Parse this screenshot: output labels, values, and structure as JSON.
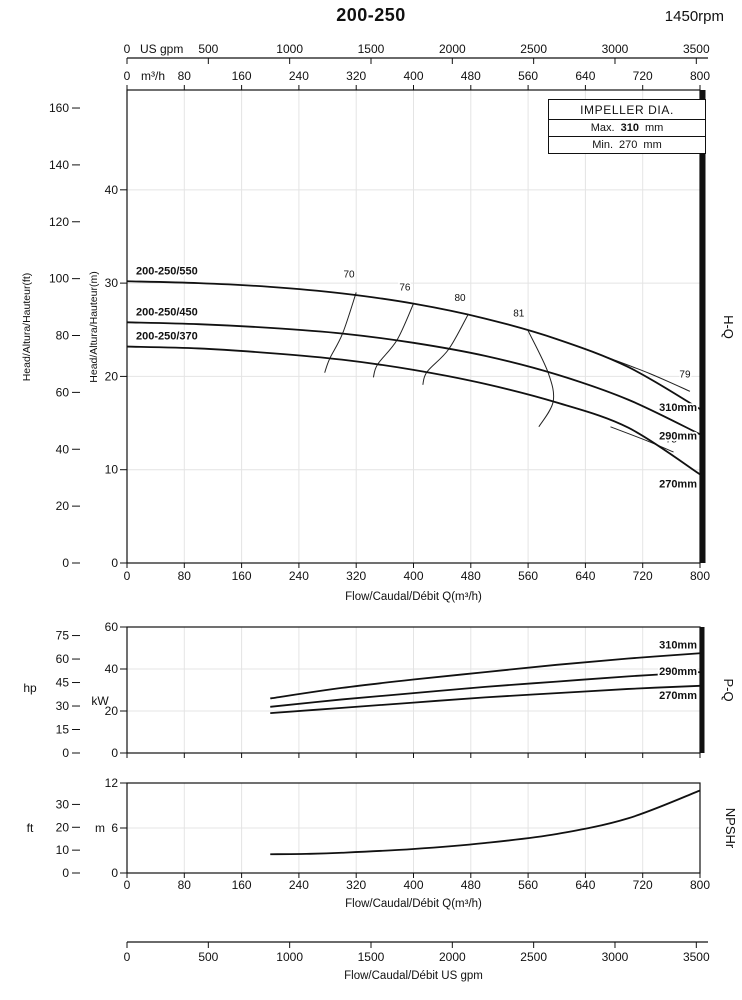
{
  "header": {
    "title": "200-250",
    "rpm": "1450rpm"
  },
  "impeller_box": {
    "title": "IMPELLER DIA.",
    "rows": [
      {
        "label": "Max.",
        "value": "310",
        "unit": "mm"
      },
      {
        "label": "Min.",
        "value": "270",
        "unit": "mm"
      }
    ]
  },
  "right_labels": {
    "hq": "H-Q",
    "pq": "P-Q",
    "npshr": "NPSHr"
  },
  "bottom_axis_gpm": {
    "label": "Flow/Caudal/Débit  US gpm",
    "ticks": [
      0,
      500,
      1000,
      1500,
      2000,
      2500,
      3000,
      3500
    ]
  },
  "chart_data": [
    {
      "type": "line",
      "name": "H-Q",
      "xlabel": "Flow/Caudal/Débit Q(m³/h)",
      "x_unit": "m³/h",
      "x2_unit": "US gpm",
      "ylabel_ft": "Head/Altura/Hauteur(ft)",
      "ylabel_m": "Head/Altura/Hauteur(m)",
      "xlim": [
        0,
        800
      ],
      "ylim_m": [
        0,
        50.7
      ],
      "x_ticks": [
        0,
        80,
        160,
        240,
        320,
        400,
        480,
        560,
        640,
        720,
        800
      ],
      "x2_ticks_gpm": [
        0,
        500,
        1000,
        1500,
        2000,
        2500,
        3000,
        3500
      ],
      "y_ticks_m": [
        0,
        10,
        20,
        30,
        40
      ],
      "y_ticks_ft": [
        0,
        20,
        40,
        60,
        80,
        100,
        120,
        140,
        160
      ],
      "series": [
        {
          "name": "200-250/550",
          "diameter_label": "310mm",
          "x": [
            0,
            100,
            200,
            300,
            400,
            500,
            600,
            700,
            800
          ],
          "y": [
            30.2,
            30.0,
            29.6,
            28.9,
            27.8,
            26.2,
            24.0,
            21.0,
            16.5
          ]
        },
        {
          "name": "200-250/450",
          "diameter_label": "290mm",
          "x": [
            0,
            100,
            200,
            300,
            400,
            500,
            600,
            700,
            800
          ],
          "y": [
            25.8,
            25.6,
            25.2,
            24.6,
            23.6,
            22.2,
            20.2,
            17.5,
            13.8
          ]
        },
        {
          "name": "200-250/370",
          "diameter_label": "270mm",
          "x": [
            0,
            100,
            200,
            300,
            400,
            500,
            600,
            700,
            800
          ],
          "y": [
            23.2,
            23.0,
            22.5,
            21.8,
            20.7,
            19.2,
            17.2,
            14.5,
            9.5
          ]
        }
      ],
      "efficiency_contours": [
        {
          "label": "70",
          "label_at": [
            310,
            30.6
          ],
          "points": [
            [
              320,
              29.0
            ],
            [
              301,
              24.6
            ],
            [
              283,
              21.9
            ],
            [
              276,
              20.4
            ]
          ]
        },
        {
          "label": "76",
          "label_at": [
            388,
            29.2
          ],
          "points": [
            [
              400,
              27.8
            ],
            [
              377,
              23.9
            ],
            [
              350,
              21.3
            ],
            [
              344,
              19.9
            ]
          ]
        },
        {
          "label": "80",
          "label_at": [
            465,
            28.1
          ],
          "points": [
            [
              476,
              26.6
            ],
            [
              449,
              22.9
            ],
            [
              419,
              20.5
            ],
            [
              413,
              19.1
            ]
          ]
        },
        {
          "label": "81",
          "label_at": [
            547,
            26.4
          ],
          "points": [
            [
              560,
              24.9
            ],
            [
              588,
              20.4
            ],
            [
              595,
              17.3
            ],
            [
              575,
              14.6
            ]
          ]
        },
        {
          "label": "79",
          "label_at": [
            779,
            19.9
          ],
          "points": [
            [
              672,
              22.0
            ],
            [
              730,
              20.3
            ],
            [
              786,
              18.4
            ]
          ]
        },
        {
          "label": "75",
          "label_at": [
            760,
            12.9
          ],
          "points": [
            [
              675,
              14.6
            ],
            [
              726,
              13.1
            ],
            [
              763,
              11.9
            ]
          ]
        }
      ]
    },
    {
      "type": "line",
      "name": "P-Q",
      "ylabel_hp": "hp",
      "ylabel_kw": "kW",
      "xlim": [
        0,
        800
      ],
      "ylim_kw": [
        0,
        60
      ],
      "x_ticks": [
        0,
        80,
        160,
        240,
        320,
        400,
        480,
        560,
        640,
        720,
        800
      ],
      "y_ticks_kw": [
        0,
        20,
        40,
        60
      ],
      "y_ticks_hp": [
        0,
        15,
        30,
        45,
        60,
        75
      ],
      "series": [
        {
          "name": "310mm",
          "x": [
            200,
            300,
            400,
            500,
            600,
            700,
            800
          ],
          "y": [
            26,
            31,
            35,
            38.5,
            42,
            45,
            47.5
          ]
        },
        {
          "name": "290mm",
          "x": [
            200,
            300,
            400,
            500,
            600,
            700,
            800
          ],
          "y": [
            22,
            25.5,
            28.5,
            31.5,
            34,
            36.5,
            38.5
          ]
        },
        {
          "name": "270mm",
          "x": [
            200,
            300,
            400,
            500,
            600,
            700,
            800
          ],
          "y": [
            19,
            21.5,
            24,
            26.5,
            28.5,
            30.5,
            32
          ]
        }
      ]
    },
    {
      "type": "line",
      "name": "NPSHr",
      "xlabel": "Flow/Caudal/Débit Q(m³/h)",
      "ylabel_ft": "ft",
      "ylabel_m": "m",
      "xlim": [
        0,
        800
      ],
      "ylim_m": [
        0,
        12
      ],
      "x_ticks": [
        0,
        80,
        160,
        240,
        320,
        400,
        480,
        560,
        640,
        720,
        800
      ],
      "y_ticks_m": [
        0,
        6,
        12
      ],
      "y_ticks_ft": [
        0,
        10,
        20,
        30
      ],
      "series": [
        {
          "name": "NPSHr",
          "x": [
            200,
            250,
            300,
            400,
            500,
            600,
            700,
            800
          ],
          "y": [
            2.5,
            2.55,
            2.7,
            3.2,
            4.0,
            5.2,
            7.3,
            11.0
          ]
        }
      ]
    }
  ]
}
